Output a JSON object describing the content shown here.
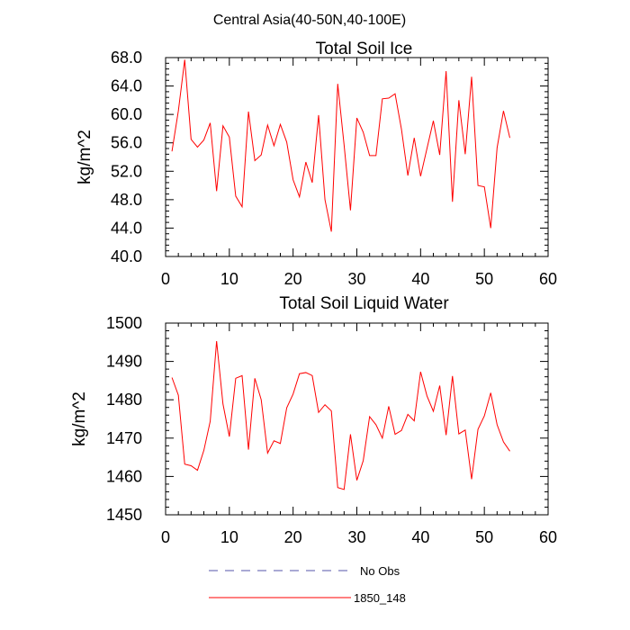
{
  "figure_title": "Central Asia(40-50N,40-100E)",
  "chart_data": [
    {
      "type": "line",
      "title": "Total Soil Ice",
      "xlabel": "",
      "ylabel": "kg/m^2",
      "xlim": [
        0,
        60
      ],
      "ylim": [
        40,
        68
      ],
      "xticks": [
        0,
        10,
        20,
        30,
        40,
        50,
        60
      ],
      "xtick_labels": [
        "0",
        "10",
        "20",
        "30",
        "40",
        "50",
        "60"
      ],
      "yticks": [
        40,
        44,
        48,
        52,
        56,
        60,
        64,
        68
      ],
      "ytick_labels": [
        "40.0",
        "44.0",
        "48.0",
        "52.0",
        "56.0",
        "60.0",
        "64.0",
        "68.0"
      ],
      "series": [
        {
          "name": "1850_148",
          "color": "#ff0000",
          "x": [
            1,
            2,
            3,
            4,
            5,
            6,
            7,
            8,
            9,
            10,
            11,
            12,
            13,
            14,
            15,
            16,
            17,
            18,
            19,
            20,
            21,
            22,
            23,
            24,
            25,
            26,
            27,
            28,
            29,
            30,
            31,
            32,
            33,
            34,
            35,
            36,
            37,
            38,
            39,
            40,
            41,
            42,
            43,
            44,
            45,
            46,
            47,
            48,
            49,
            50,
            51,
            52,
            53,
            54
          ],
          "y": [
            54.8,
            60.5,
            67.7,
            56.5,
            55.4,
            56.4,
            58.8,
            49.2,
            58.4,
            56.8,
            48.5,
            47.0,
            60.4,
            53.5,
            54.3,
            58.5,
            55.6,
            58.6,
            56.1,
            50.8,
            48.4,
            53.3,
            50.4,
            59.9,
            48.0,
            43.5,
            64.3,
            55.7,
            46.5,
            59.5,
            57.5,
            54.2,
            54.2,
            62.2,
            62.3,
            62.9,
            57.9,
            51.4,
            56.7,
            51.3,
            55.2,
            59.1,
            54.3,
            66.1,
            47.7,
            62.0,
            54.4,
            65.3,
            50.0,
            49.8,
            44.0,
            55.3,
            60.5,
            56.7
          ]
        }
      ]
    },
    {
      "type": "line",
      "title": "Total Soil Liquid Water",
      "xlabel": "",
      "ylabel": "kg/m^2",
      "xlim": [
        0,
        60
      ],
      "ylim": [
        1450,
        1500
      ],
      "xticks": [
        0,
        10,
        20,
        30,
        40,
        50,
        60
      ],
      "xtick_labels": [
        "0",
        "10",
        "20",
        "30",
        "40",
        "50",
        "60"
      ],
      "yticks": [
        1450,
        1460,
        1470,
        1480,
        1490,
        1500
      ],
      "ytick_labels": [
        "1450",
        "1460",
        "1470",
        "1480",
        "1490",
        "1500"
      ],
      "series": [
        {
          "name": "1850_148",
          "color": "#ff0000",
          "x": [
            1,
            2,
            3,
            4,
            5,
            6,
            7,
            8,
            9,
            10,
            11,
            12,
            13,
            14,
            15,
            16,
            17,
            18,
            19,
            20,
            21,
            22,
            23,
            24,
            25,
            26,
            27,
            28,
            29,
            30,
            31,
            32,
            33,
            34,
            35,
            36,
            37,
            38,
            39,
            40,
            41,
            42,
            43,
            44,
            45,
            46,
            47,
            48,
            49,
            50,
            51,
            52,
            53,
            54
          ],
          "y": [
            1485.8,
            1481.2,
            1463.2,
            1462.8,
            1461.6,
            1466.8,
            1474.4,
            1495.3,
            1478.9,
            1470.4,
            1485.6,
            1486.3,
            1467.0,
            1485.6,
            1480.0,
            1466.1,
            1469.3,
            1468.6,
            1477.9,
            1481.5,
            1486.8,
            1487.1,
            1486.3,
            1476.7,
            1478.7,
            1477.1,
            1457.1,
            1456.6,
            1471.0,
            1459.0,
            1464.1,
            1475.6,
            1473.5,
            1470.0,
            1478.3,
            1471.0,
            1472.0,
            1476.2,
            1474.5,
            1487.3,
            1481.0,
            1477.0,
            1483.7,
            1470.8,
            1486.2,
            1471.1,
            1472.1,
            1459.3,
            1472.3,
            1475.8,
            1481.8,
            1473.5,
            1469.0,
            1466.6
          ]
        }
      ]
    }
  ],
  "legend": {
    "placement": "bottom",
    "items": [
      {
        "label": "No Obs",
        "color": "#5555aa",
        "style": "dashed"
      },
      {
        "label": "1850_148",
        "color": "#ff0000",
        "style": "solid"
      }
    ]
  }
}
